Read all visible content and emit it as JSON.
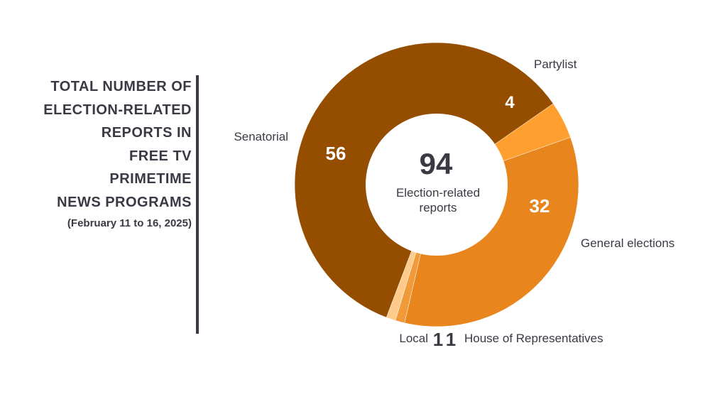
{
  "title_lines": [
    "TOTAL NUMBER OF",
    "ELECTION-RELATED",
    "REPORTS IN",
    "FREE TV",
    "PRIMETIME",
    "NEWS PROGRAMS"
  ],
  "subtitle": "(February 11 to 16, 2025)",
  "chart_data": {
    "type": "pie",
    "variant": "donut",
    "center_value": "94",
    "center_label_lines": [
      "Election-related",
      "reports"
    ],
    "slices": [
      {
        "name": "Senatorial",
        "value": 56,
        "color": "#954E00"
      },
      {
        "name": "Partylist",
        "value": 4,
        "color": "#FF9F2F"
      },
      {
        "name": "General elections",
        "value": 32,
        "color": "#E8861D"
      },
      {
        "name": "House of Representatives",
        "value": 1,
        "color": "#F09A3A"
      },
      {
        "name": "Local",
        "value": 1,
        "color": "#FFCB8A"
      }
    ]
  }
}
